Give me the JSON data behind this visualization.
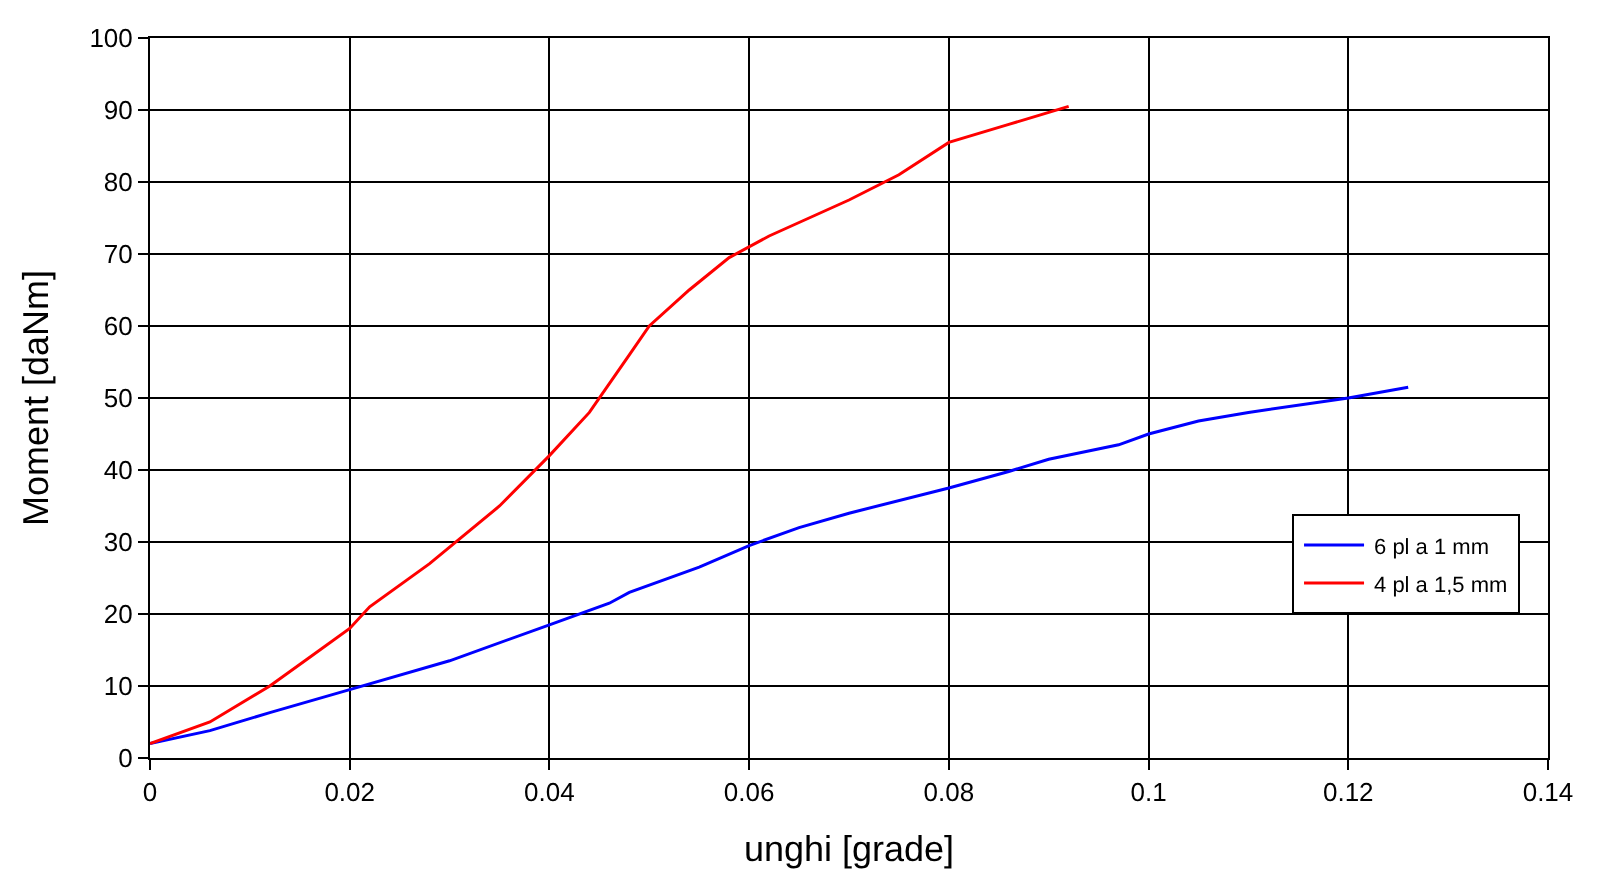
{
  "chart_data": {
    "type": "line",
    "xlabel": "unghi [grade]",
    "ylabel": "Moment [daNm]",
    "xlim": [
      0,
      0.14
    ],
    "xticks": [
      0,
      0.02,
      0.04,
      0.06,
      0.08,
      0.1,
      0.12,
      0.14
    ],
    "ylim": [
      0,
      100
    ],
    "yticks": [
      0,
      10,
      20,
      30,
      40,
      50,
      60,
      70,
      80,
      90,
      100
    ],
    "grid": true,
    "legend": "bottom right",
    "marker": "none",
    "line_style": "solid",
    "series": [
      {
        "name": "6 pl a 1 mm",
        "color": "#0000ff",
        "x": [
          0,
          0.006,
          0.012,
          0.02,
          0.03,
          0.04,
          0.046,
          0.048,
          0.055,
          0.06,
          0.065,
          0.07,
          0.08,
          0.086,
          0.09,
          0.097,
          0.1,
          0.105,
          0.11,
          0.12,
          0.126
        ],
        "values": [
          2,
          3.8,
          6.3,
          9.5,
          13.5,
          18.5,
          21.5,
          23,
          26.5,
          29.5,
          32,
          34,
          37.5,
          39.8,
          41.5,
          43.5,
          45,
          46.8,
          48,
          50,
          51.5
        ]
      },
      {
        "name": "4 pl a 1,5 mm",
        "color": "#ff0000",
        "x": [
          0,
          0.006,
          0.012,
          0.016,
          0.02,
          0.022,
          0.028,
          0.035,
          0.04,
          0.044,
          0.046,
          0.048,
          0.05,
          0.054,
          0.058,
          0.062,
          0.066,
          0.07,
          0.075,
          0.08,
          0.086,
          0.092
        ],
        "values": [
          2,
          5,
          10,
          14,
          18,
          21,
          27,
          35,
          42,
          48,
          52,
          56,
          60,
          65,
          69.5,
          72.5,
          75,
          77.5,
          81,
          85.5,
          88,
          90.5
        ]
      }
    ]
  }
}
